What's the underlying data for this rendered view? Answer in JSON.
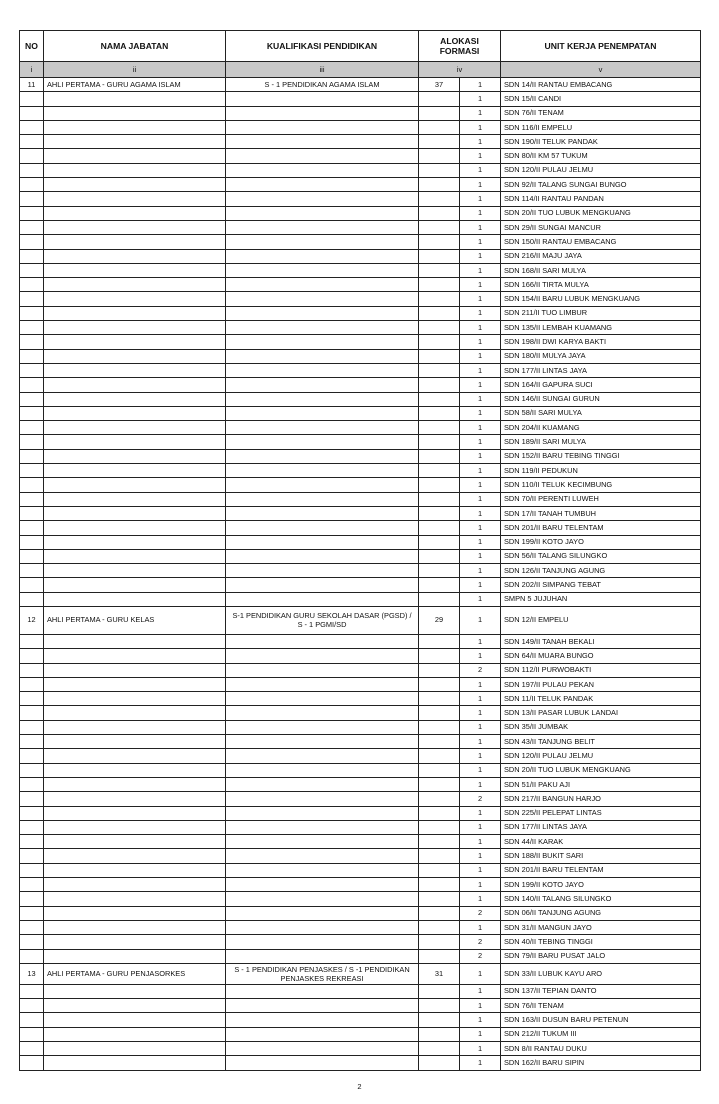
{
  "headers": {
    "no": "NO",
    "nama": "NAMA JABATAN",
    "kualifikasi": "KUALIFIKASI PENDIDIKAN",
    "alokasi": "ALOKASI FORMASI",
    "unit": "UNIT KERJA PENEMPATAN"
  },
  "roman": [
    "i",
    "ii",
    "iii",
    "iv",
    "v"
  ],
  "groups": [
    {
      "no": "11",
      "nama": "AHLI PERTAMA - GURU AGAMA ISLAM",
      "kualifikasi": "S - 1  PENDIDIKAN AGAMA ISLAM",
      "total": "37",
      "units": [
        [
          "1",
          "SDN 14/II RANTAU EMBACANG"
        ],
        [
          "1",
          "SDN 15/II CANDI"
        ],
        [
          "1",
          "SDN 76/II TENAM"
        ],
        [
          "1",
          "SDN 116/II EMPELU"
        ],
        [
          "1",
          "SDN 190/II TELUK PANDAK"
        ],
        [
          "1",
          "SDN 80/II KM 57 TUKUM"
        ],
        [
          "1",
          "SDN 120/II PULAU JELMU"
        ],
        [
          "1",
          "SDN 92/II TALANG SUNGAI BUNGO"
        ],
        [
          "1",
          "SDN 114/II RANTAU PANDAN"
        ],
        [
          "1",
          "SDN 20/II TUO LUBUK MENGKUANG"
        ],
        [
          "1",
          "SDN 29/II SUNGAI MANCUR"
        ],
        [
          "1",
          "SDN 150/II RANTAU EMBACANG"
        ],
        [
          "1",
          "SDN 216/II MAJU JAYA"
        ],
        [
          "1",
          "SDN 168/II SARI MULYA"
        ],
        [
          "1",
          "SDN 166/II TIRTA MULYA"
        ],
        [
          "1",
          "SDN 154/II BARU LUBUK MENGKUANG"
        ],
        [
          "1",
          "SDN 211/II TUO LIMBUR"
        ],
        [
          "1",
          "SDN 135/II LEMBAH KUAMANG"
        ],
        [
          "1",
          "SDN 198/II DWI KARYA BAKTI"
        ],
        [
          "1",
          "SDN 180/II MULYA JAYA"
        ],
        [
          "1",
          "SDN 177/II LINTAS JAYA"
        ],
        [
          "1",
          "SDN 164/II GAPURA SUCI"
        ],
        [
          "1",
          "SDN 146/II SUNGAI GURUN"
        ],
        [
          "1",
          "SDN 58/II SARI MULYA"
        ],
        [
          "1",
          "SDN 204/II KUAMANG"
        ],
        [
          "1",
          "SDN 189/II SARI MULYA"
        ],
        [
          "1",
          "SDN 152/II BARU TEBING TINGGI"
        ],
        [
          "1",
          "SDN 119/II PEDUKUN"
        ],
        [
          "1",
          "SDN 110/II TELUK KECIMBUNG"
        ],
        [
          "1",
          "SDN 70/II PERENTI LUWEH"
        ],
        [
          "1",
          "SDN 17/II TANAH TUMBUH"
        ],
        [
          "1",
          "SDN 201/II BARU TELENTAM"
        ],
        [
          "1",
          "SDN 199/II KOTO JAYO"
        ],
        [
          "1",
          "SDN 56/II TALANG SILUNGKO"
        ],
        [
          "1",
          "SDN 126/II TANJUNG AGUNG"
        ],
        [
          "1",
          "SDN 202/II SIMPANG TEBAT"
        ],
        [
          "1",
          "SMPN 5 JUJUHAN"
        ]
      ]
    },
    {
      "no": "12",
      "nama": "AHLI PERTAMA - GURU KELAS",
      "kualifikasi": "S-1 PENDIDIKAN GURU SEKOLAH DASAR (PGSD) / S - 1 PGMI/SD",
      "total": "29",
      "units": [
        [
          "1",
          "SDN 12/II EMPELU"
        ],
        [
          "1",
          "SDN 149/II TANAH BEKALI"
        ],
        [
          "1",
          "SDN 64/II MUARA BUNGO"
        ],
        [
          "2",
          "SDN 112/II PURWOBAKTI"
        ],
        [
          "1",
          "SDN 197/II PULAU PEKAN"
        ],
        [
          "1",
          "SDN 11/II TELUK PANDAK"
        ],
        [
          "1",
          "SDN 13/II PASAR LUBUK LANDAI"
        ],
        [
          "1",
          "SDN 35/II JUMBAK"
        ],
        [
          "1",
          "SDN 43/II TANJUNG BELIT"
        ],
        [
          "1",
          "SDN 120/II PULAU JELMU"
        ],
        [
          "1",
          "SDN 20/II TUO LUBUK MENGKUANG"
        ],
        [
          "1",
          "SDN 51/II PAKU AJI"
        ],
        [
          "2",
          "SDN 217/II BANGUN HARJO"
        ],
        [
          "1",
          "SDN 225/II PELEPAT LINTAS"
        ],
        [
          "1",
          "SDN 177/II LINTAS JAYA"
        ],
        [
          "1",
          "SDN 44/II KARAK"
        ],
        [
          "1",
          "SDN 188/II BUKIT SARI"
        ],
        [
          "1",
          "SDN 201/II BARU TELENTAM"
        ],
        [
          "1",
          "SDN 199/II KOTO JAYO"
        ],
        [
          "1",
          "SDN 140/II TALANG SILUNGKO"
        ],
        [
          "2",
          "SDN 06/II TANJUNG AGUNG"
        ],
        [
          "1",
          "SDN 31/II MANGUN JAYO"
        ],
        [
          "2",
          "SDN 40/II TEBING TINGGI"
        ],
        [
          "2",
          "SDN 79/II BARU PUSAT JALO"
        ]
      ]
    },
    {
      "no": "13",
      "nama": "AHLI PERTAMA - GURU PENJASORKES",
      "kualifikasi": "S - 1 PENDIDIKAN PENJASKES / S -1 PENDIDIKAN PENJASKES REKREASI",
      "total": "31",
      "units": [
        [
          "1",
          "SDN 33/II LUBUK KAYU ARO"
        ],
        [
          "1",
          "SDN 137/II TEPIAN DANTO"
        ],
        [
          "1",
          "SDN 76/II TENAM"
        ],
        [
          "1",
          "SDN 163/II DUSUN BARU PETENUN"
        ],
        [
          "1",
          "SDN 212/II TUKUM III"
        ],
        [
          "1",
          "SDN 8/II RANTAU DUKU"
        ],
        [
          "1",
          "SDN 162/II BARU SIPIN"
        ]
      ]
    }
  ],
  "page_number": "2"
}
